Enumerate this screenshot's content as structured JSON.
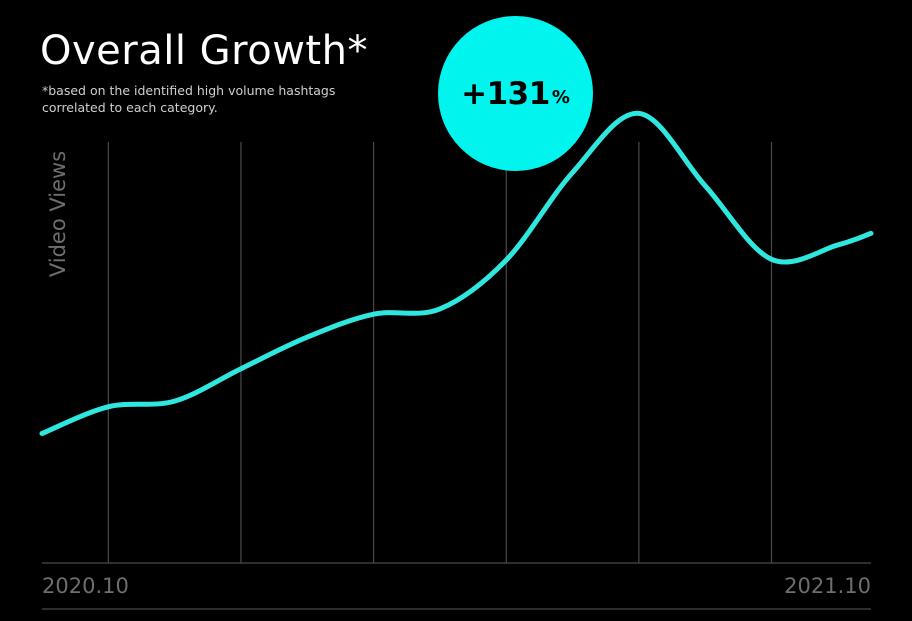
{
  "header": {
    "title": "Overall Growth*",
    "note_line1": "*based on the identified high volume hashtags",
    "note_line2": "correlated to each category."
  },
  "badge": {
    "value": "+131",
    "unit": "%",
    "color": "#00f5ee"
  },
  "colors": {
    "background": "#000000",
    "line": "#2ee8e0",
    "grid": "#4a4a4a",
    "axis_text": "#6e6e6e"
  },
  "chart_data": {
    "type": "line",
    "title": "Overall Growth*",
    "ylabel": "Video Views",
    "xlabel": "",
    "x_tick_labels": [
      "2020.10",
      "2021.10"
    ],
    "x_range": [
      0,
      12.5
    ],
    "y_range": [
      0,
      100
    ],
    "grid": "vertical",
    "y_axis_values_shown": false,
    "series": [
      {
        "x": [
          0,
          1,
          2,
          3,
          4,
          5,
          6,
          7,
          8,
          9,
          10,
          11,
          12,
          12.5
        ],
        "y": [
          23.5,
          30.5,
          32,
          40.5,
          48.8,
          54.8,
          56.2,
          69,
          92,
          107.5,
          88.5,
          69.2,
          73,
          76
        ],
        "values_are_relative": true
      }
    ],
    "annotation": "+131%"
  }
}
